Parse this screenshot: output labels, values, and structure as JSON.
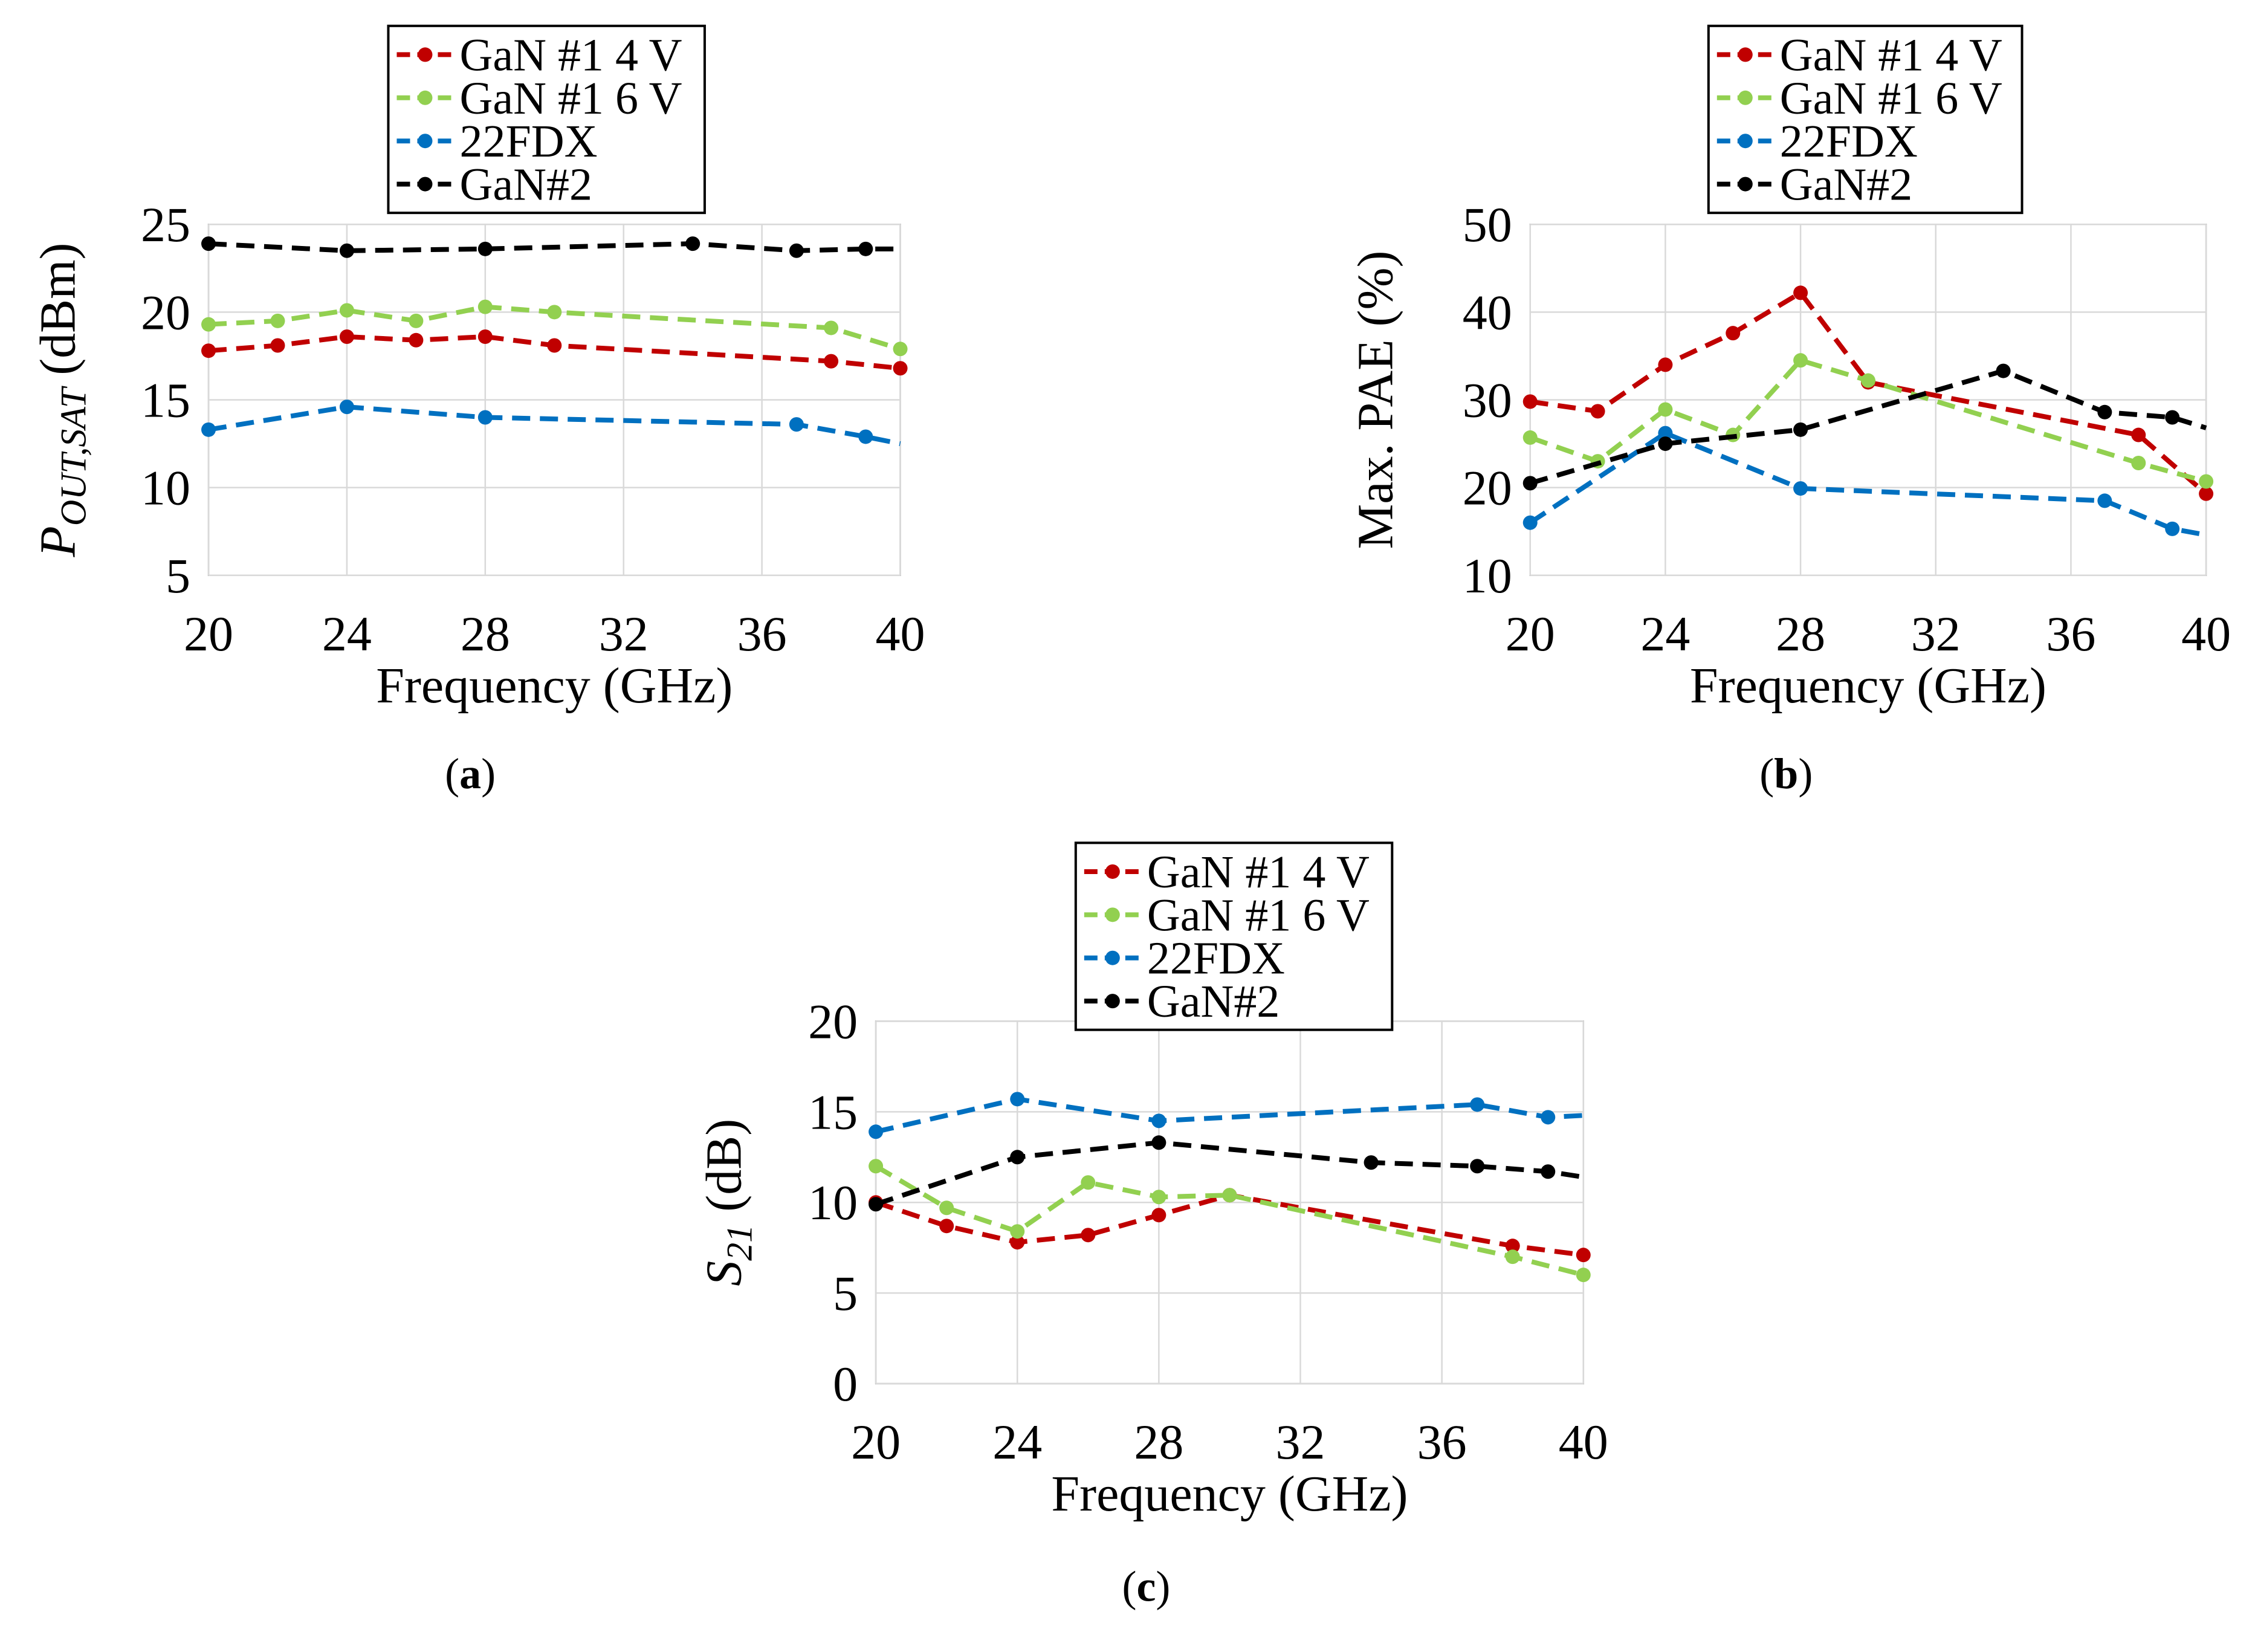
{
  "colors": {
    "gan1_4v": "#c00000",
    "gan1_6v": "#92d050",
    "fdx22": "#0070c0",
    "gan2": "#000000",
    "grid": "#d9d9d9",
    "axis": "#bfbfbf"
  },
  "chart_data": [
    {
      "type": "line",
      "caption_label": "a",
      "title": "",
      "xlabel": "Frequency (GHz)",
      "ylabel_main": "P",
      "ylabel_sub": "OUT,SAT",
      "ylabel_rest": " (dBm)",
      "xlim": [
        20,
        40
      ],
      "ylim": [
        5,
        25
      ],
      "xticks": [
        20,
        24,
        28,
        32,
        36,
        40
      ],
      "yticks": [
        5,
        10,
        15,
        20,
        25
      ],
      "grid": "horizontal",
      "legend": "top-center",
      "series": [
        {
          "name": "GaN #1 4 V",
          "color_key": "gan1_4v",
          "x": [
            20,
            22,
            24,
            26,
            28,
            30,
            38,
            40
          ],
          "y": [
            17.8,
            18.1,
            18.6,
            18.4,
            18.6,
            18.1,
            17.2,
            16.8
          ]
        },
        {
          "name": "GaN #1 6 V",
          "color_key": "gan1_6v",
          "x": [
            20,
            22,
            24,
            26,
            28,
            30,
            38,
            40
          ],
          "y": [
            19.3,
            19.5,
            20.1,
            19.5,
            20.3,
            20.0,
            19.1,
            17.9
          ]
        },
        {
          "name": "22FDX",
          "color_key": "fdx22",
          "x": [
            20,
            24,
            28,
            37,
            39,
            40
          ],
          "y": [
            13.3,
            14.6,
            14.0,
            13.6,
            12.9,
            12.5
          ],
          "marker_end": false
        },
        {
          "name": "GaN#2",
          "color_key": "gan2",
          "x": [
            20,
            24,
            28,
            34,
            37,
            39,
            40
          ],
          "y": [
            23.9,
            23.5,
            23.6,
            23.9,
            23.5,
            23.6,
            23.6
          ],
          "marker_end": false
        }
      ]
    },
    {
      "type": "line",
      "caption_label": "b",
      "title": "",
      "xlabel": "Frequency (GHz)",
      "ylabel_main": "Max. PAE (%)",
      "ylabel_sub": "",
      "ylabel_rest": "",
      "xlim": [
        20,
        40
      ],
      "ylim": [
        10,
        50
      ],
      "xticks": [
        20,
        24,
        28,
        32,
        36,
        40
      ],
      "yticks": [
        10,
        20,
        30,
        40,
        50
      ],
      "grid": "horizontal",
      "legend": "top-center",
      "series": [
        {
          "name": "GaN #1 4 V",
          "color_key": "gan1_4v",
          "x": [
            20,
            22,
            24,
            26,
            28,
            30,
            38,
            40
          ],
          "y": [
            29.8,
            28.7,
            34.0,
            37.6,
            42.2,
            32.0,
            26.0,
            19.3
          ]
        },
        {
          "name": "GaN #1 6 V",
          "color_key": "gan1_6v",
          "x": [
            20,
            22,
            24,
            26,
            28,
            30,
            38,
            40
          ],
          "y": [
            25.7,
            23.0,
            28.9,
            26.0,
            34.5,
            32.2,
            22.8,
            20.7
          ]
        },
        {
          "name": "22FDX",
          "color_key": "fdx22",
          "x": [
            20,
            24,
            28,
            37,
            39,
            40
          ],
          "y": [
            16.0,
            26.2,
            19.9,
            18.5,
            15.3,
            14.6
          ],
          "marker_end": false
        },
        {
          "name": "GaN#2",
          "color_key": "gan2",
          "x": [
            20,
            24,
            28,
            34,
            37,
            39,
            40
          ],
          "y": [
            20.5,
            25.0,
            26.6,
            33.3,
            28.6,
            28.0,
            26.8
          ],
          "marker_end": false
        }
      ]
    },
    {
      "type": "line",
      "caption_label": "c",
      "title": "",
      "xlabel": "Frequency (GHz)",
      "ylabel_main": "S",
      "ylabel_sub": "21",
      "ylabel_rest": " (dB)",
      "xlim": [
        20,
        40
      ],
      "ylim": [
        0,
        20
      ],
      "xticks": [
        20,
        24,
        28,
        32,
        36,
        40
      ],
      "yticks": [
        0,
        5,
        10,
        15,
        20
      ],
      "grid": "horizontal",
      "legend": "top-center",
      "series": [
        {
          "name": "GaN #1 4 V",
          "color_key": "gan1_4v",
          "x": [
            20,
            22,
            24,
            26,
            28,
            30,
            38,
            40
          ],
          "y": [
            10.0,
            8.7,
            7.8,
            8.2,
            9.3,
            10.4,
            7.6,
            7.1
          ]
        },
        {
          "name": "GaN #1 6 V",
          "color_key": "gan1_6v",
          "x": [
            20,
            22,
            24,
            26,
            28,
            30,
            38,
            40
          ],
          "y": [
            12.0,
            9.7,
            8.4,
            11.1,
            10.3,
            10.4,
            7.0,
            6.0
          ]
        },
        {
          "name": "22FDX",
          "color_key": "fdx22",
          "x": [
            20,
            24,
            28,
            37,
            39,
            40
          ],
          "y": [
            13.9,
            15.7,
            14.5,
            15.4,
            14.7,
            14.8
          ],
          "marker_end": false
        },
        {
          "name": "GaN#2",
          "color_key": "gan2",
          "x": [
            20,
            24,
            28,
            34,
            37,
            39,
            40
          ],
          "y": [
            9.9,
            12.5,
            13.3,
            12.2,
            12.0,
            11.7,
            11.4
          ],
          "marker_end": false
        }
      ]
    }
  ]
}
